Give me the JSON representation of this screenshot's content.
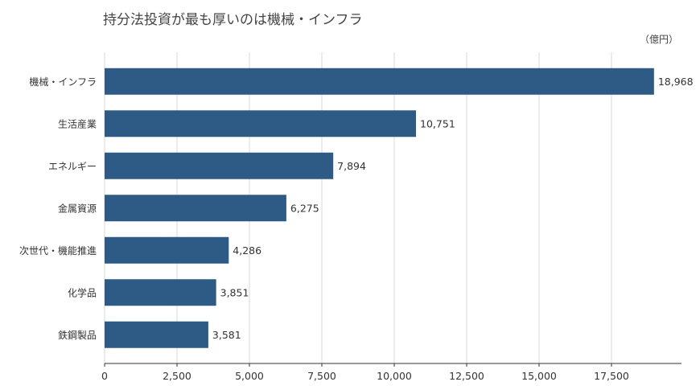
{
  "chart_data": {
    "type": "bar",
    "orientation": "horizontal",
    "title": "持分法投資が最も厚いのは機械・インフラ",
    "unit_label": "（億円）",
    "categories": [
      "機械・インフラ",
      "生活産業",
      "エネルギー",
      "金属資源",
      "次世代・機能推進",
      "化学品",
      "鉄鋼製品"
    ],
    "values": [
      18968,
      10751,
      7894,
      6275,
      4286,
      3851,
      3581
    ],
    "value_labels": [
      "18,968",
      "10,751",
      "7,894",
      "6,275",
      "4,286",
      "3,851",
      "3,581"
    ],
    "x_ticks": [
      0,
      2500,
      5000,
      7500,
      10000,
      12500,
      15000,
      17500
    ],
    "x_tick_labels": [
      "0",
      "2,500",
      "5,000",
      "7,500",
      "10,000",
      "12,500",
      "15,000",
      "17,500"
    ],
    "xlim": [
      0,
      20000
    ],
    "grid": true,
    "bar_color": "#2e5b86",
    "grid_color": "#d9d9d9"
  }
}
